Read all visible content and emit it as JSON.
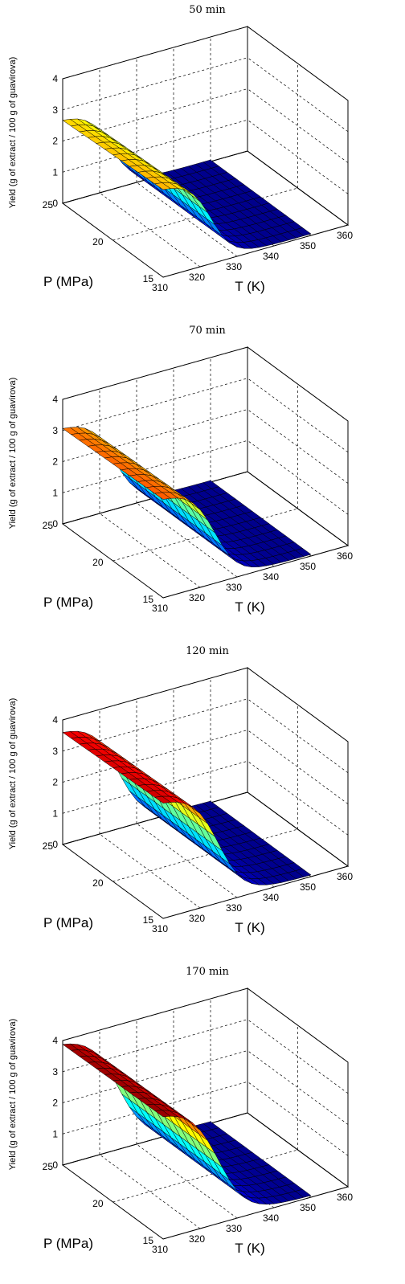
{
  "chart_data": [
    {
      "type": "surface",
      "title": "50 min",
      "xlabel": "T (K)",
      "ylabel": "P (MPa)",
      "zlabel": "Yield (g of extract / 100 g of guavirova)",
      "x_ticks": [
        "310",
        "320",
        "330",
        "340",
        "350",
        "360"
      ],
      "y_ticks": [
        "15",
        "20",
        "25"
      ],
      "z_ticks": [
        "0",
        "1",
        "2",
        "3",
        "4"
      ],
      "xlim": [
        310,
        360
      ],
      "ylim": [
        15,
        25
      ],
      "zlim": [
        0,
        4
      ],
      "grid": true,
      "colormap": "jet",
      "surface": {
        "t_range": [
          310,
          350
        ],
        "p_range": [
          15,
          25
        ],
        "z_low": 0.05,
        "z_high": 2.85,
        "p_effect": -0.15,
        "t_mid": 323,
        "t_width": 3.0
      }
    },
    {
      "type": "surface",
      "title": "70 min",
      "xlabel": "T (K)",
      "ylabel": "P (MPa)",
      "zlabel": "Yield (g of extract / 100 g of guavirova)",
      "x_ticks": [
        "310",
        "320",
        "330",
        "340",
        "350",
        "360"
      ],
      "y_ticks": [
        "15",
        "20",
        "25"
      ],
      "z_ticks": [
        "0",
        "1",
        "2",
        "3",
        "4"
      ],
      "xlim": [
        310,
        360
      ],
      "ylim": [
        15,
        25
      ],
      "zlim": [
        0,
        4
      ],
      "grid": true,
      "colormap": "jet",
      "surface": {
        "t_range": [
          310,
          350
        ],
        "p_range": [
          15,
          25
        ],
        "z_low": 0.05,
        "z_high": 3.2,
        "p_effect": -0.1,
        "t_mid": 324,
        "t_width": 3.2
      }
    },
    {
      "type": "surface",
      "title": "120 min",
      "xlabel": "T (K)",
      "ylabel": "P (MPa)",
      "zlabel": "Yield (g of extract / 100 g of guavirova)",
      "x_ticks": [
        "310",
        "320",
        "330",
        "340",
        "350",
        "360"
      ],
      "y_ticks": [
        "15",
        "20",
        "25"
      ],
      "z_ticks": [
        "0",
        "1",
        "2",
        "3",
        "4"
      ],
      "xlim": [
        310,
        360
      ],
      "ylim": [
        15,
        25
      ],
      "zlim": [
        0,
        4
      ],
      "grid": true,
      "colormap": "jet",
      "surface": {
        "t_range": [
          310,
          350
        ],
        "p_range": [
          15,
          25
        ],
        "z_low": 0.05,
        "z_high": 3.75,
        "p_effect": -0.1,
        "t_mid": 325,
        "t_width": 3.5
      }
    },
    {
      "type": "surface",
      "title": "170 min",
      "xlabel": "T (K)",
      "ylabel": "P (MPa)",
      "zlabel": "Yield (g of extract / 100 g of guavirova)",
      "x_ticks": [
        "310",
        "320",
        "330",
        "340",
        "350",
        "360"
      ],
      "y_ticks": [
        "15",
        "20",
        "25"
      ],
      "z_ticks": [
        "0",
        "1",
        "2",
        "3",
        "4"
      ],
      "xlim": [
        310,
        360
      ],
      "ylim": [
        15,
        25
      ],
      "zlim": [
        0,
        4
      ],
      "grid": true,
      "colormap": "jet",
      "surface": {
        "t_range": [
          310,
          350
        ],
        "p_range": [
          15,
          25
        ],
        "z_low": 0.05,
        "z_high": 4.0,
        "p_effect": -0.05,
        "t_mid": 325,
        "t_width": 3.8
      }
    }
  ]
}
